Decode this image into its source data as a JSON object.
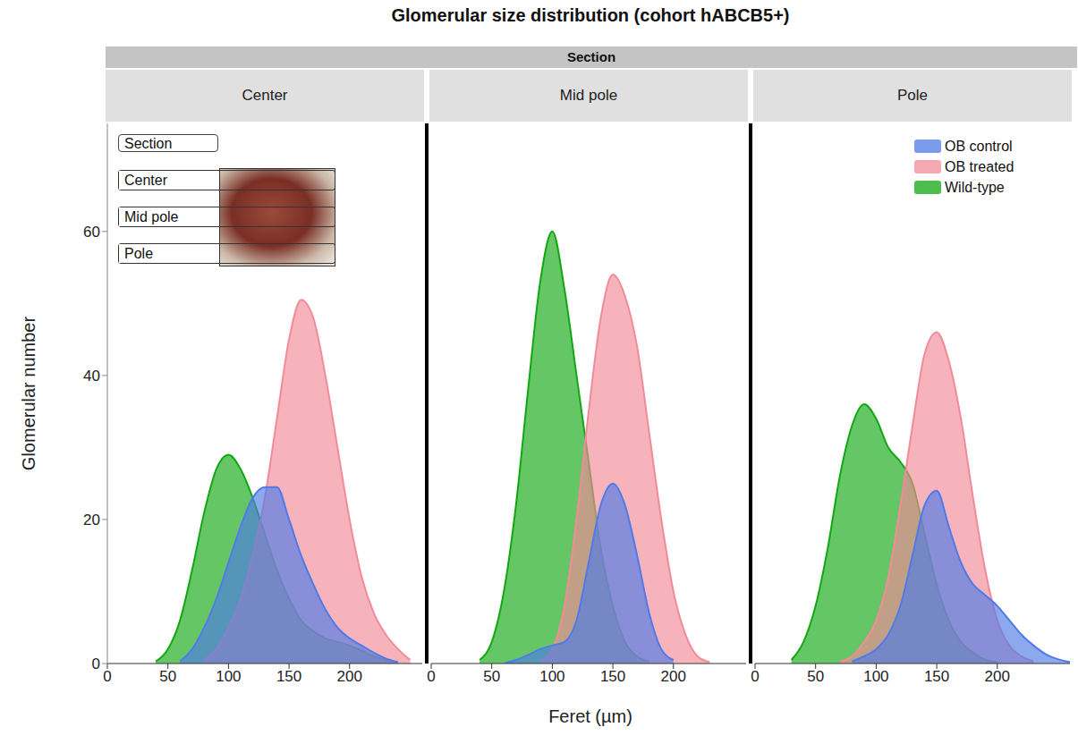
{
  "chart_data": {
    "type": "area",
    "title": "Glomerular size distribution (cohort hABCB5+)",
    "facet_label": "Section",
    "x_label": "Feret (µm)",
    "y_label": "Glomerular number",
    "x": [
      30,
      40,
      50,
      60,
      70,
      80,
      90,
      100,
      110,
      120,
      130,
      140,
      150,
      160,
      170,
      180,
      190,
      200,
      210,
      220,
      230,
      240,
      250,
      260
    ],
    "xlim": [
      0,
      260
    ],
    "xticks": [
      0,
      50,
      100,
      150,
      200
    ],
    "ylim": [
      0,
      75
    ],
    "yticks": [
      0,
      20,
      40,
      60
    ],
    "legend": "upper right",
    "panels": [
      {
        "title": "Center",
        "series": [
          {
            "name": "OB control",
            "color": "#4f7be8",
            "values": [
              null,
              null,
              null,
              0.3,
              2,
              5,
              9,
              14,
              19,
              23,
              24.5,
              24.5,
              20,
              15,
              11,
              7.5,
              5,
              3.5,
              2.5,
              1.5,
              0.7,
              0.2,
              null,
              null
            ]
          },
          {
            "name": "OB treated",
            "color": "#f28b98",
            "values": [
              null,
              null,
              null,
              null,
              null,
              0.5,
              2,
              5,
              9,
              15,
              23,
              34,
              45,
              50.5,
              48,
              40,
              30,
              20,
              12,
              7,
              4,
              2,
              0.5,
              null
            ]
          },
          {
            "name": "Wild-type",
            "color": "#12a812",
            "values": [
              null,
              0.3,
              2,
              6,
              13,
              21,
              27,
              29,
              27,
              23,
              18,
              13,
              9,
              6,
              4.5,
              3.5,
              3,
              2.5,
              1.8,
              1,
              0.5,
              0.2,
              null,
              null
            ]
          }
        ]
      },
      {
        "title": "Mid pole",
        "series": [
          {
            "name": "OB control",
            "color": "#4f7be8",
            "values": [
              null,
              null,
              null,
              0,
              0.5,
              1.2,
              2,
              2.5,
              3,
              6,
              14,
              22,
              25,
              22,
              15,
              7,
              2,
              0.5,
              null,
              null,
              null,
              null,
              null,
              null
            ]
          },
          {
            "name": "OB treated",
            "color": "#f28b98",
            "values": [
              null,
              null,
              null,
              null,
              null,
              null,
              0.3,
              2,
              8,
              20,
              35,
              48,
              54,
              51,
              44,
              32,
              20,
              10,
              4,
              1,
              0.2,
              null,
              null,
              null
            ]
          },
          {
            "name": "Wild-type",
            "color": "#12a812",
            "values": [
              null,
              0.5,
              3,
              10,
              22,
              38,
              53,
              60,
              52,
              40,
              28,
              16,
              8,
              3,
              1,
              0.3,
              null,
              null,
              null,
              null,
              null,
              null,
              null,
              null
            ]
          }
        ]
      },
      {
        "title": "Pole",
        "series": [
          {
            "name": "OB control",
            "color": "#4f7be8",
            "values": [
              null,
              null,
              null,
              null,
              null,
              0.3,
              1,
              2,
              4,
              8,
              15,
              22,
              24,
              19,
              14,
              11,
              9.5,
              8,
              6,
              4,
              2.5,
              1.3,
              0.6,
              0.2
            ]
          },
          {
            "name": "OB treated",
            "color": "#f28b98",
            "values": [
              null,
              null,
              null,
              null,
              0.3,
              1,
              3,
              6,
              12,
              22,
              33,
              43,
              46,
              42,
              34,
              23,
              13,
              6,
              2.5,
              1,
              0.3,
              null,
              null,
              null
            ]
          },
          {
            "name": "Wild-type",
            "color": "#12a812",
            "values": [
              0.5,
              3,
              8,
              16,
              26,
              33,
              36,
              34,
              30,
              28,
              25,
              18,
              11,
              6,
              3,
              1.5,
              0.5,
              0.2,
              null,
              null,
              null,
              null,
              null,
              null
            ]
          }
        ]
      }
    ]
  }
}
